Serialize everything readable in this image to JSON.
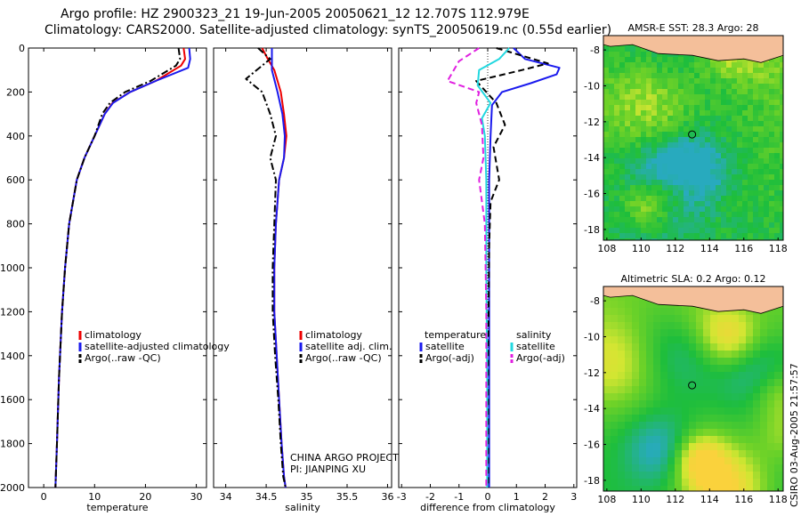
{
  "header": {
    "line1": "Argo profile: HZ 2900323_21 19-Jun-2005 20050621_12 12.707S 112.979E",
    "line2": "Climatology: CARS2000. Satellite-adjusted climatology: synTS_20050619.nc (0.55d earlier)"
  },
  "credit": {
    "project": "CHINA ARGO PROJECT",
    "pi": "PI: JIANPING XU",
    "stamp": "CSIRO 03-Aug-2005 21:57:57"
  },
  "colors": {
    "climatology": "#ee0000",
    "satellite": "#1a1aee",
    "argo": "#000000",
    "salinity_sat": "#22d8e0",
    "salinity_argo": "#e020e0",
    "land": "#f4bf9a"
  },
  "chart_data": [
    {
      "id": "temperature",
      "type": "line",
      "xlabel": "temperature",
      "ylabel": "",
      "xlim": [
        -3,
        32
      ],
      "ylim": [
        2000,
        0
      ],
      "xticks": [
        "0",
        "10",
        "20",
        "30"
      ],
      "xtick_values": [
        0,
        10,
        20,
        30
      ],
      "yticks": [
        "0",
        "200",
        "400",
        "600",
        "800",
        "1000",
        "1200",
        "1400",
        "1600",
        "1800",
        "2000"
      ],
      "ytick_values": [
        0,
        200,
        400,
        600,
        800,
        1000,
        1200,
        1400,
        1600,
        1800,
        2000
      ],
      "legend": [
        "climatology",
        "satellite-adjusted climatology",
        "Argo(..raw -QC)"
      ],
      "series": [
        {
          "name": "climatology",
          "color": "#ee0000",
          "style": "solid",
          "x": [
            27.5,
            27.8,
            27.0,
            22.0,
            17.0,
            13.5,
            12.0,
            10.0,
            8.0,
            6.5,
            5.0,
            4.2,
            3.6,
            3.0,
            2.6,
            2.3
          ],
          "y": [
            0,
            50,
            80,
            150,
            200,
            250,
            300,
            400,
            500,
            600,
            800,
            1000,
            1200,
            1500,
            1800,
            2000
          ]
        },
        {
          "name": "satellite-adjusted climatology",
          "color": "#1a1aee",
          "style": "solid",
          "x": [
            28.6,
            28.8,
            28.4,
            22.0,
            17.0,
            13.6,
            12.0,
            10.0,
            8.0,
            6.5,
            5.0,
            4.2,
            3.6,
            3.0,
            2.6,
            2.3
          ],
          "y": [
            0,
            50,
            90,
            150,
            200,
            250,
            300,
            400,
            500,
            600,
            800,
            1000,
            1200,
            1500,
            1800,
            2000
          ]
        },
        {
          "name": "Argo(..raw -QC)",
          "color": "#000000",
          "style": "dash-dot",
          "x": [
            26.5,
            26.8,
            26.0,
            21.0,
            16.0,
            13.0,
            11.5,
            10.0,
            8.0,
            6.5,
            5.0,
            4.2,
            3.6,
            3.0,
            2.6,
            2.3
          ],
          "y": [
            0,
            50,
            80,
            150,
            200,
            250,
            300,
            400,
            500,
            600,
            800,
            1000,
            1200,
            1500,
            1800,
            2000
          ]
        }
      ]
    },
    {
      "id": "salinity",
      "type": "line",
      "xlabel": "salinity",
      "xlim": [
        33.85,
        36.05
      ],
      "ylim": [
        2000,
        0
      ],
      "xticks": [
        "34",
        "34.5",
        "35",
        "35.5",
        "36"
      ],
      "xtick_values": [
        34,
        34.5,
        35,
        35.5,
        36
      ],
      "legend": [
        "climatology",
        "satellite adj. clim.",
        "Argo(..raw -QC)"
      ],
      "series": [
        {
          "name": "climatology",
          "color": "#ee0000",
          "style": "solid",
          "x": [
            34.45,
            34.52,
            34.6,
            34.68,
            34.72,
            34.75,
            34.72,
            34.66,
            34.62,
            34.6,
            34.6,
            34.63,
            34.66,
            34.69,
            34.72,
            34.74
          ],
          "y": [
            0,
            50,
            100,
            200,
            300,
            400,
            500,
            600,
            800,
            1000,
            1200,
            1400,
            1600,
            1800,
            1950,
            2000
          ]
        },
        {
          "name": "satellite adj. clim.",
          "color": "#1a1aee",
          "style": "solid",
          "x": [
            34.57,
            34.57,
            34.57,
            34.64,
            34.7,
            34.73,
            34.72,
            34.66,
            34.62,
            34.6,
            34.6,
            34.63,
            34.66,
            34.69,
            34.72,
            34.74
          ],
          "y": [
            0,
            50,
            100,
            200,
            300,
            400,
            500,
            600,
            800,
            1000,
            1200,
            1400,
            1600,
            1800,
            1950,
            2000
          ]
        },
        {
          "name": "Argo(..raw -QC)",
          "color": "#000000",
          "style": "dash-dot",
          "x": [
            34.4,
            34.55,
            34.25,
            34.45,
            34.55,
            34.62,
            34.55,
            34.62,
            34.6,
            34.58,
            34.58,
            34.61,
            34.65,
            34.68,
            34.71,
            34.74
          ],
          "y": [
            0,
            50,
            140,
            200,
            300,
            400,
            500,
            600,
            800,
            1000,
            1200,
            1400,
            1600,
            1800,
            1950,
            2000
          ]
        }
      ]
    },
    {
      "id": "difference",
      "type": "line",
      "xlabel": "difference from climatology",
      "xlim": [
        -3.1,
        3.1
      ],
      "ylim": [
        2000,
        0
      ],
      "xticks": [
        "-3",
        "-2",
        "-1",
        "0",
        "1",
        "2",
        "3"
      ],
      "xtick_values": [
        -3,
        -2,
        -1,
        0,
        1,
        2,
        3
      ],
      "legend_left": [
        "temperature",
        "satellite",
        "Argo(-adj)"
      ],
      "legend_right": [
        "salinity",
        "satellite",
        "Argo(-adj)"
      ],
      "series": [
        {
          "name": "temperature satellite",
          "color": "#1a1aee",
          "style": "solid",
          "x": [
            0.9,
            1.3,
            2.5,
            2.4,
            1.5,
            0.5,
            0.15,
            0.1,
            0.05,
            0.05,
            0.05,
            0.05,
            0.05,
            0.05
          ],
          "y": [
            0,
            50,
            90,
            120,
            160,
            200,
            260,
            400,
            600,
            800,
            1200,
            1600,
            1800,
            2000
          ]
        },
        {
          "name": "temperature Argo(-adj)",
          "color": "#000000",
          "style": "dashed",
          "x": [
            0.3,
            2.1,
            1.2,
            -0.4,
            0.3,
            0.6,
            0.2,
            0.4,
            0.1,
            0.05,
            0.02,
            0.02
          ],
          "y": [
            0,
            70,
            100,
            150,
            250,
            350,
            450,
            600,
            700,
            900,
            1400,
            2000
          ]
        },
        {
          "name": "salinity satellite",
          "color": "#22d8e0",
          "style": "solid",
          "x": [
            0.75,
            0.4,
            -0.3,
            -0.35,
            0.1,
            -0.2,
            -0.1,
            -0.05,
            -0.05,
            -0.02,
            -0.02
          ],
          "y": [
            0,
            50,
            100,
            170,
            250,
            320,
            400,
            600,
            1000,
            1500,
            2000
          ]
        },
        {
          "name": "salinity Argo(-adj)",
          "color": "#e020e0",
          "style": "dashed",
          "x": [
            -0.3,
            -1.0,
            -1.4,
            -0.3,
            -0.4,
            -0.2,
            -0.15,
            -0.3,
            -0.1,
            -0.05,
            -0.05
          ],
          "y": [
            0,
            60,
            150,
            200,
            250,
            350,
            500,
            600,
            800,
            1200,
            2000
          ]
        }
      ]
    },
    {
      "id": "sst_map",
      "type": "heatmap",
      "title": "AMSR-E SST: 28.3 Argo: 28",
      "xlim": [
        107.8,
        118.3
      ],
      "ylim": [
        -18.6,
        -7.2
      ],
      "xticks": [
        "108",
        "110",
        "112",
        "114",
        "116",
        "118"
      ],
      "xtick_values": [
        108,
        110,
        112,
        114,
        116,
        118
      ],
      "yticks": [
        "-8",
        "-10",
        "-12",
        "-14",
        "-16",
        "-18"
      ],
      "ytick_values": [
        -8,
        -10,
        -12,
        -14,
        -16,
        -18
      ],
      "marker": {
        "lon": 112.979,
        "lat": -12.707
      }
    },
    {
      "id": "sla_map",
      "type": "heatmap",
      "title": "Altimetric SLA: 0.2 Argo: 0.12",
      "xlim": [
        107.8,
        118.3
      ],
      "ylim": [
        -18.6,
        -7.2
      ],
      "xticks": [
        "108",
        "110",
        "112",
        "114",
        "116",
        "118"
      ],
      "xtick_values": [
        108,
        110,
        112,
        114,
        116,
        118
      ],
      "yticks": [
        "-8",
        "-10",
        "-12",
        "-14",
        "-16",
        "-18"
      ],
      "ytick_values": [
        -8,
        -10,
        -12,
        -14,
        -16,
        -18
      ],
      "marker": {
        "lon": 112.979,
        "lat": -12.707
      }
    }
  ]
}
